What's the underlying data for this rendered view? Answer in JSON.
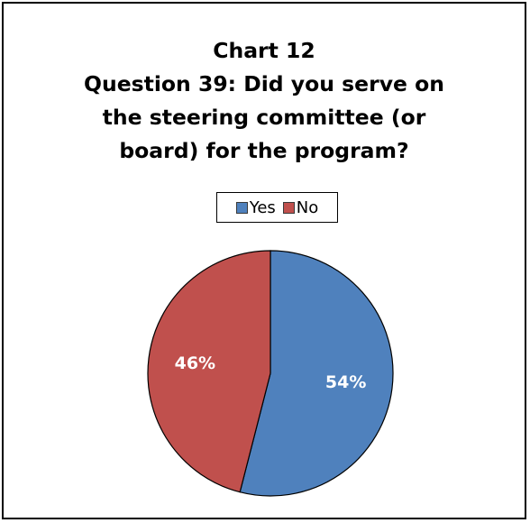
{
  "chart_data": {
    "type": "pie",
    "title_lines": [
      "Chart 12",
      "Question 39: Did you serve on",
      "the steering committee (or",
      "board) for the program?"
    ],
    "legend_placement": "top",
    "slices": [
      {
        "label": "Yes",
        "value": 54,
        "display": "54%",
        "color": "#4F81BD"
      },
      {
        "label": "No",
        "value": 46,
        "display": "46%",
        "color": "#C0504D"
      }
    ]
  }
}
